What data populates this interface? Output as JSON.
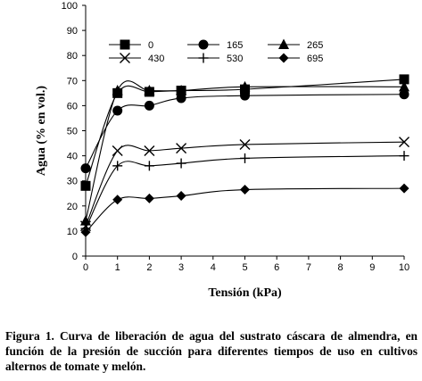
{
  "chart_data": {
    "type": "line",
    "xlabel": "Tensión (kPa)",
    "ylabel": "Agua (% en vol.)",
    "xlim": [
      0,
      10
    ],
    "ylim": [
      0,
      100
    ],
    "xticks": [
      0,
      1,
      2,
      3,
      4,
      5,
      6,
      7,
      8,
      9,
      10
    ],
    "yticks": [
      0,
      10,
      20,
      30,
      40,
      50,
      60,
      70,
      80,
      90,
      100
    ],
    "grid": false,
    "legend_placement": "top",
    "x": [
      0,
      1,
      2,
      3,
      5,
      10
    ],
    "series": [
      {
        "name": "0",
        "marker": "square",
        "values": [
          28,
          65,
          65.5,
          66,
          66.5,
          70.5
        ]
      },
      {
        "name": "165",
        "marker": "circle",
        "values": [
          35,
          58,
          60,
          63,
          64,
          64.5
        ]
      },
      {
        "name": "265",
        "marker": "triangle",
        "values": [
          14,
          66,
          66,
          66,
          67.5,
          67.5
        ]
      },
      {
        "name": "430",
        "marker": "x",
        "values": [
          12,
          42,
          42,
          43,
          44.5,
          45.5
        ]
      },
      {
        "name": "530",
        "marker": "plus",
        "values": [
          11,
          36,
          36,
          37,
          39,
          40
        ]
      },
      {
        "name": "695",
        "marker": "diamond",
        "values": [
          9.5,
          22.5,
          23,
          24,
          26.5,
          27
        ]
      }
    ]
  },
  "caption": "Figura 1. Curva de liberación de agua del sustrato cáscara de almendra, en función de la presión de succión para diferentes tiempos de uso en cultivos alternos de tomate y melón."
}
